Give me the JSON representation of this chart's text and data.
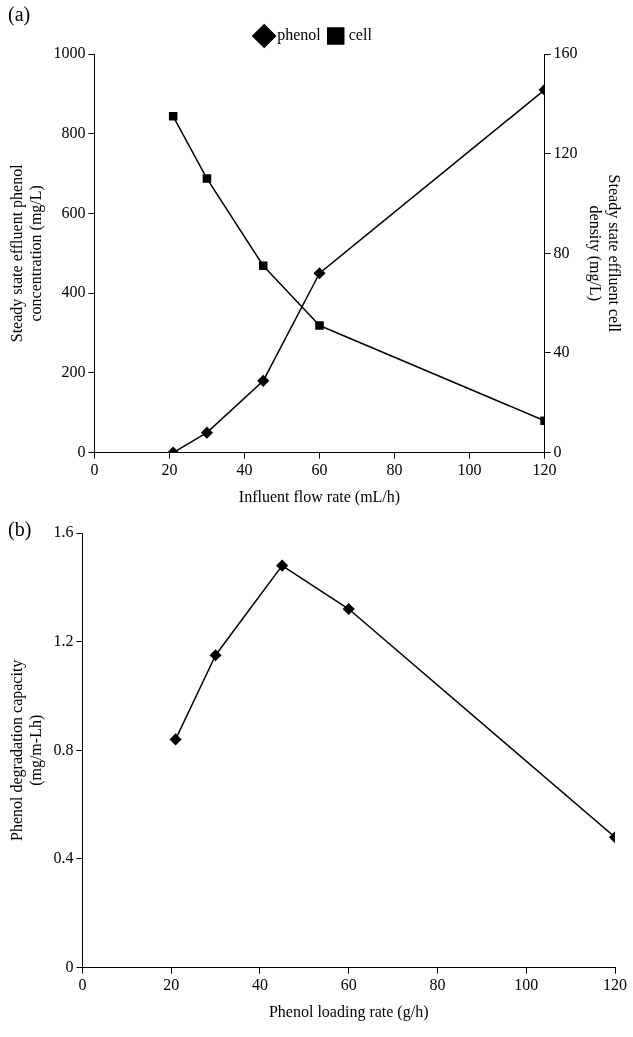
{
  "chart_data": [
    {
      "type": "line",
      "title": "(a)",
      "xlabel": "Influent flow rate (mL/h)",
      "ylabel": "Steady state effluent phenol concentration (mg/L)",
      "y2label": "Steady state effluent cell density (mg/L)",
      "xlim": [
        0,
        120
      ],
      "xticks": [
        0,
        20,
        40,
        60,
        80,
        100,
        120
      ],
      "ylim": [
        0,
        1000
      ],
      "yticks": [
        0,
        200,
        400,
        600,
        800,
        1000
      ],
      "y2lim": [
        0,
        160
      ],
      "y2ticks": [
        0,
        40,
        80,
        120,
        160
      ],
      "legend": "top",
      "grid": false,
      "line_style": "solid",
      "series": [
        {
          "name": "phenol",
          "color": "#000000",
          "marker": "diamond",
          "x": [
            21,
            30,
            45,
            60,
            120
          ],
          "values": [
            0,
            50,
            180,
            450,
            910
          ]
        },
        {
          "name": "cell",
          "color": "#000000",
          "marker": "square",
          "axis": "y2",
          "x": [
            21,
            30,
            45,
            60,
            120
          ],
          "values": [
            135,
            110,
            75,
            51,
            12.8
          ]
        }
      ]
    },
    {
      "type": "line",
      "title": "(b)",
      "xlabel": "Phenol loading rate (g/h)",
      "ylabel": "Phenol degradation capacity (mg/m-Lh)",
      "xlim": [
        0,
        120
      ],
      "xticks": [
        0,
        20,
        40,
        60,
        80,
        100,
        120
      ],
      "ylim": [
        0,
        1.6
      ],
      "yticks": [
        0,
        0.4,
        0.8,
        1.2,
        1.6
      ],
      "legend": false,
      "grid": false,
      "line_style": "solid",
      "series": [
        {
          "color": "#000000",
          "marker": "diamond",
          "x": [
            21,
            30,
            45,
            60,
            120
          ],
          "values": [
            0.84,
            1.15,
            1.48,
            1.32,
            0.48
          ]
        }
      ]
    }
  ]
}
